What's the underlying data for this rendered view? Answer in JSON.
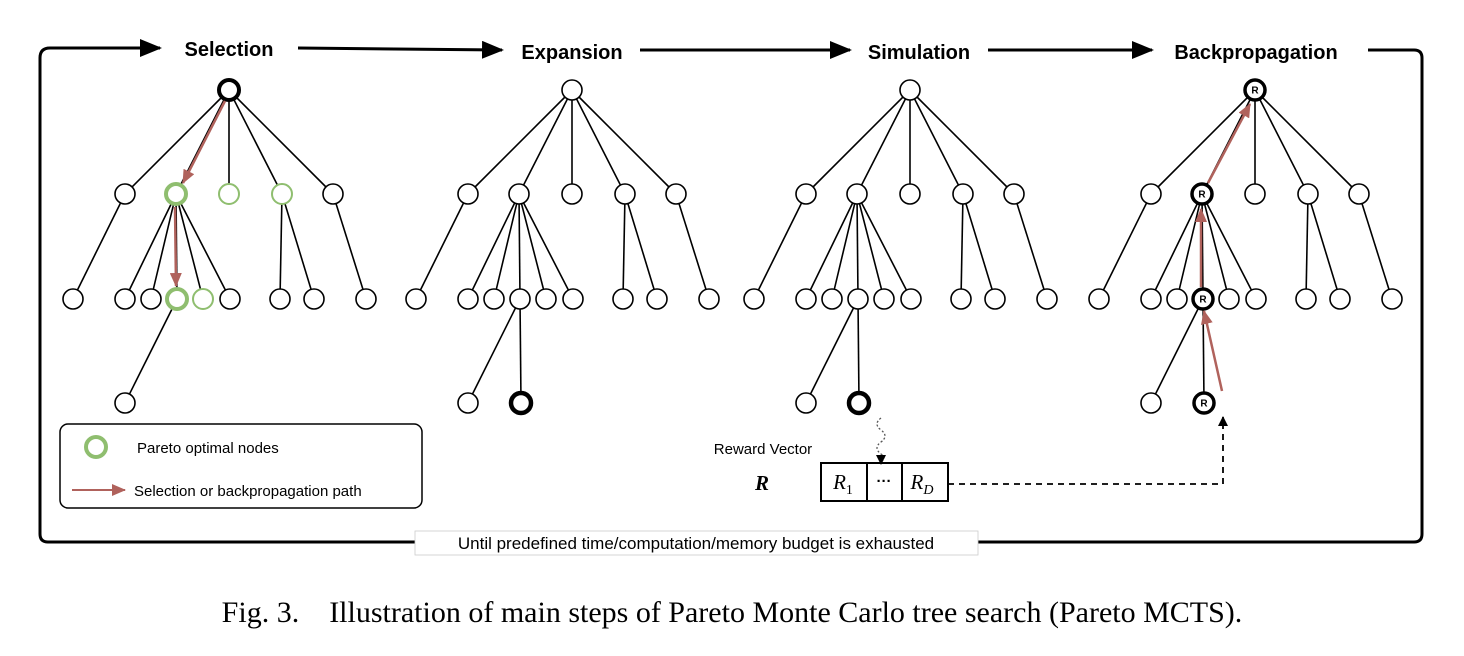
{
  "steps": [
    "Selection",
    "Expansion",
    "Simulation",
    "Backpropagation"
  ],
  "legend": {
    "pareto_label": "Pareto optimal nodes",
    "path_label": "Selection or backpropagation path"
  },
  "reward": {
    "label": "Reward Vector",
    "symbol": "R",
    "cells": [
      {
        "base": "R",
        "sub": "1"
      },
      {
        "base": "···",
        "sub": ""
      },
      {
        "base": "R",
        "sub": "D"
      }
    ]
  },
  "node_mark": "R",
  "loop_label": "Until predefined time/computation/memory budget is exhausted",
  "caption": "Fig. 3.    Illustration of main steps of Pareto Monte Carlo tree search (Pareto MCTS).",
  "colors": {
    "pareto": "#8fbe6f",
    "path": "#b0625c",
    "line": "#000000"
  }
}
